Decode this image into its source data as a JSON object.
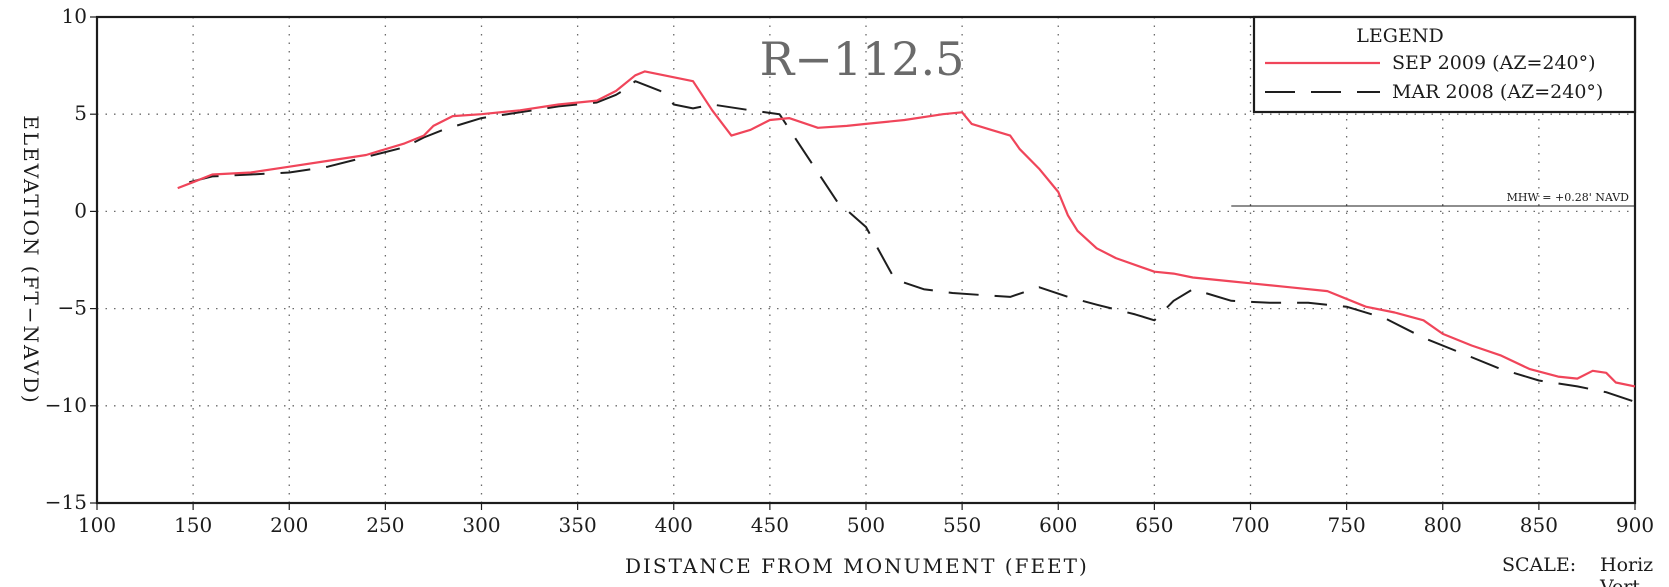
{
  "chart_data": {
    "type": "line",
    "title": "R−112.5",
    "xlabel": "DISTANCE    FROM    MONUMENT    (FEET)",
    "ylabel": "ELEVATION  (FT−NAVD)",
    "xlim": [
      100,
      900
    ],
    "ylim": [
      -15,
      10
    ],
    "x_ticks": [
      100,
      150,
      200,
      250,
      300,
      350,
      400,
      450,
      500,
      550,
      600,
      650,
      700,
      750,
      800,
      850,
      900
    ],
    "y_ticks": [
      10,
      5,
      0,
      -5,
      -10,
      -15
    ],
    "y_tick_labels": [
      "10",
      "5",
      "0",
      "−5",
      "−10",
      "−15"
    ],
    "grid": "dotted",
    "legend_title": "LEGEND",
    "legend_position": "top-right",
    "series": [
      {
        "name": "SEP  2009  (AZ=240°)",
        "color": "#f0455a",
        "style": "solid",
        "points": [
          [
            142,
            1.2
          ],
          [
            150,
            1.5
          ],
          [
            160,
            1.9
          ],
          [
            180,
            2.0
          ],
          [
            200,
            2.3
          ],
          [
            220,
            2.6
          ],
          [
            240,
            2.9
          ],
          [
            260,
            3.5
          ],
          [
            270,
            3.9
          ],
          [
            275,
            4.4
          ],
          [
            285,
            4.9
          ],
          [
            300,
            5.0
          ],
          [
            320,
            5.2
          ],
          [
            340,
            5.5
          ],
          [
            360,
            5.7
          ],
          [
            370,
            6.2
          ],
          [
            380,
            7.0
          ],
          [
            385,
            7.2
          ],
          [
            395,
            7.0
          ],
          [
            410,
            6.7
          ],
          [
            420,
            5.2
          ],
          [
            430,
            3.9
          ],
          [
            440,
            4.2
          ],
          [
            450,
            4.7
          ],
          [
            460,
            4.8
          ],
          [
            475,
            4.3
          ],
          [
            490,
            4.4
          ],
          [
            500,
            4.5
          ],
          [
            520,
            4.7
          ],
          [
            540,
            5.0
          ],
          [
            550,
            5.1
          ],
          [
            555,
            4.5
          ],
          [
            565,
            4.2
          ],
          [
            575,
            3.9
          ],
          [
            580,
            3.2
          ],
          [
            590,
            2.2
          ],
          [
            600,
            1.0
          ],
          [
            605,
            -0.2
          ],
          [
            610,
            -1.0
          ],
          [
            620,
            -1.9
          ],
          [
            630,
            -2.4
          ],
          [
            650,
            -3.1
          ],
          [
            660,
            -3.2
          ],
          [
            670,
            -3.4
          ],
          [
            690,
            -3.6
          ],
          [
            700,
            -3.7
          ],
          [
            720,
            -3.9
          ],
          [
            740,
            -4.1
          ],
          [
            760,
            -4.9
          ],
          [
            775,
            -5.2
          ],
          [
            790,
            -5.6
          ],
          [
            800,
            -6.3
          ],
          [
            815,
            -6.9
          ],
          [
            830,
            -7.4
          ],
          [
            845,
            -8.1
          ],
          [
            860,
            -8.5
          ],
          [
            870,
            -8.6
          ],
          [
            878,
            -8.2
          ],
          [
            885,
            -8.3
          ],
          [
            890,
            -8.8
          ],
          [
            900,
            -9.0
          ]
        ]
      },
      {
        "name": "MAR  2008  (AZ=240°)",
        "color": "#1e1e1e",
        "style": "dashed",
        "points": [
          [
            148,
            1.5
          ],
          [
            160,
            1.8
          ],
          [
            180,
            1.9
          ],
          [
            200,
            2.0
          ],
          [
            220,
            2.3
          ],
          [
            240,
            2.8
          ],
          [
            260,
            3.3
          ],
          [
            270,
            3.8
          ],
          [
            280,
            4.2
          ],
          [
            300,
            4.8
          ],
          [
            320,
            5.1
          ],
          [
            340,
            5.4
          ],
          [
            360,
            5.6
          ],
          [
            370,
            6.0
          ],
          [
            375,
            6.3
          ],
          [
            380,
            6.7
          ],
          [
            393,
            6.2
          ],
          [
            400,
            5.5
          ],
          [
            410,
            5.3
          ],
          [
            420,
            5.5
          ],
          [
            440,
            5.2
          ],
          [
            455,
            5.0
          ],
          [
            465,
            3.5
          ],
          [
            475,
            2.0
          ],
          [
            485,
            0.5
          ],
          [
            500,
            -0.8
          ],
          [
            515,
            -3.5
          ],
          [
            530,
            -4.0
          ],
          [
            545,
            -4.2
          ],
          [
            560,
            -4.3
          ],
          [
            575,
            -4.4
          ],
          [
            590,
            -3.9
          ],
          [
            605,
            -4.4
          ],
          [
            620,
            -4.8
          ],
          [
            640,
            -5.3
          ],
          [
            650,
            -5.6
          ],
          [
            660,
            -4.6
          ],
          [
            670,
            -4.0
          ],
          [
            690,
            -4.6
          ],
          [
            710,
            -4.7
          ],
          [
            730,
            -4.7
          ],
          [
            750,
            -4.9
          ],
          [
            770,
            -5.5
          ],
          [
            790,
            -6.5
          ],
          [
            810,
            -7.3
          ],
          [
            830,
            -8.1
          ],
          [
            850,
            -8.7
          ],
          [
            870,
            -9.0
          ],
          [
            885,
            -9.3
          ],
          [
            900,
            -9.8
          ]
        ]
      }
    ],
    "annotations": [
      {
        "text": "MHW  =  +0.28'  NAVD",
        "y": 0.28,
        "x_range": [
          690,
          900
        ]
      }
    ],
    "scale_label": "SCALE:",
    "scale_text": "Horiz",
    "scale_text_2": "Vert"
  }
}
